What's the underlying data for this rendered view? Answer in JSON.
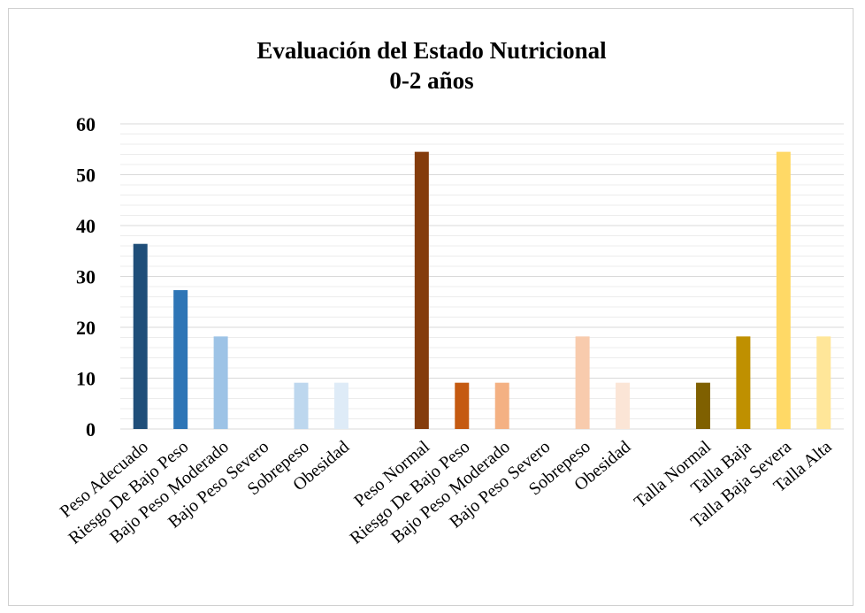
{
  "chart_data": {
    "type": "bar",
    "title": "Evaluación del Estado Nutricional",
    "subtitle": "0-2 años",
    "xlabel": "",
    "ylabel": "",
    "ylim": [
      0,
      60
    ],
    "yticks": [
      0,
      10,
      20,
      30,
      40,
      50,
      60
    ],
    "grid": true,
    "legend": "none",
    "categories": [
      "Peso Adecuado",
      "Riesgo De Bajo Peso",
      "Bajo Peso Moderado",
      "Bajo Peso Severo",
      "Sobrepeso",
      "Obesidad",
      "",
      "Peso Normal",
      "Riesgo De Bajo Peso",
      "Bajo Peso Moderado",
      "Bajo Peso Severo",
      "Sobrepeso",
      "Obesidad",
      "",
      "Talla Normal",
      "Talla Baja",
      "Talla Baja Severa",
      "Talla Alta"
    ],
    "values": [
      36.4,
      27.3,
      18.2,
      0,
      9.1,
      9.1,
      null,
      54.5,
      9.1,
      9.1,
      0,
      18.2,
      9.1,
      null,
      9.1,
      18.2,
      54.5,
      18.2
    ],
    "colors": [
      "#1f4e79",
      "#2e75b6",
      "#9dc3e6",
      "#bdd7ee",
      "#bdd7ee",
      "#deebf7",
      "",
      "#843c0c",
      "#c55a11",
      "#f4b183",
      "#f8cbad",
      "#f8cbad",
      "#fbe5d6",
      "",
      "#7f6000",
      "#bf9000",
      "#ffd966",
      "#ffe699"
    ]
  }
}
